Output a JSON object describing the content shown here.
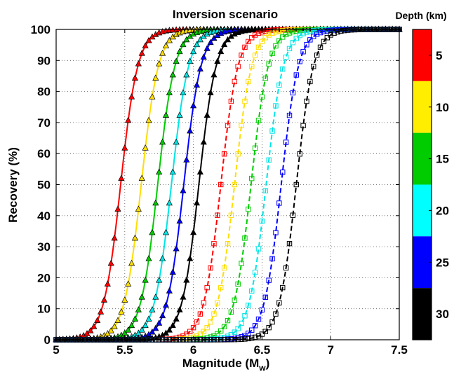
{
  "chart_data": {
    "type": "line",
    "title": "Inversion scenario",
    "xlabel": "Magnitude (M",
    "xlabel_sub": "w",
    "xlabel_close": ")",
    "ylabel": "Recovery (%)",
    "xlim": [
      5,
      7.5
    ],
    "ylim": [
      0,
      100
    ],
    "xticks": [
      "5",
      "5.5",
      "6",
      "6.5",
      "7",
      "7.5"
    ],
    "yticks": [
      "0",
      "10",
      "20",
      "30",
      "40",
      "50",
      "60",
      "70",
      "80",
      "90",
      "100"
    ],
    "grid": true,
    "colorbar": {
      "title": "Depth (km)",
      "ticks": [
        "5",
        "10",
        "15",
        "20",
        "25",
        "30"
      ],
      "colors": [
        "#ff0000",
        "#ffee00",
        "#00cc00",
        "#00ffff",
        "#0000ff",
        "#000000"
      ]
    },
    "series": [
      {
        "depth": 5,
        "color": "#ff0000",
        "marker": "triangle",
        "style": "solid",
        "m50": 5.47
      },
      {
        "depth": 10,
        "color": "#ffdd00",
        "marker": "triangle",
        "style": "solid",
        "m50": 5.62
      },
      {
        "depth": 15,
        "color": "#00cc00",
        "marker": "triangle",
        "style": "solid",
        "m50": 5.74
      },
      {
        "depth": 20,
        "color": "#00e5e5",
        "marker": "triangle",
        "style": "solid",
        "m50": 5.84
      },
      {
        "depth": 25,
        "color": "#0000ff",
        "marker": "triangle",
        "style": "solid",
        "m50": 5.93
      },
      {
        "depth": 30,
        "color": "#000000",
        "marker": "triangle",
        "style": "solid",
        "m50": 6.04
      },
      {
        "depth": 5,
        "color": "#ff0000",
        "marker": "square",
        "style": "dashed",
        "m50": 6.2
      },
      {
        "depth": 10,
        "color": "#ffdd00",
        "marker": "square",
        "style": "dashed",
        "m50": 6.3
      },
      {
        "depth": 15,
        "color": "#00cc00",
        "marker": "square",
        "style": "dashed",
        "m50": 6.42
      },
      {
        "depth": 20,
        "color": "#00e5e5",
        "marker": "square",
        "style": "dashed",
        "m50": 6.53
      },
      {
        "depth": 25,
        "color": "#0000ff",
        "marker": "square",
        "style": "dashed",
        "m50": 6.64
      },
      {
        "depth": 30,
        "color": "#000000",
        "marker": "square",
        "style": "dashed",
        "m50": 6.75
      }
    ]
  }
}
